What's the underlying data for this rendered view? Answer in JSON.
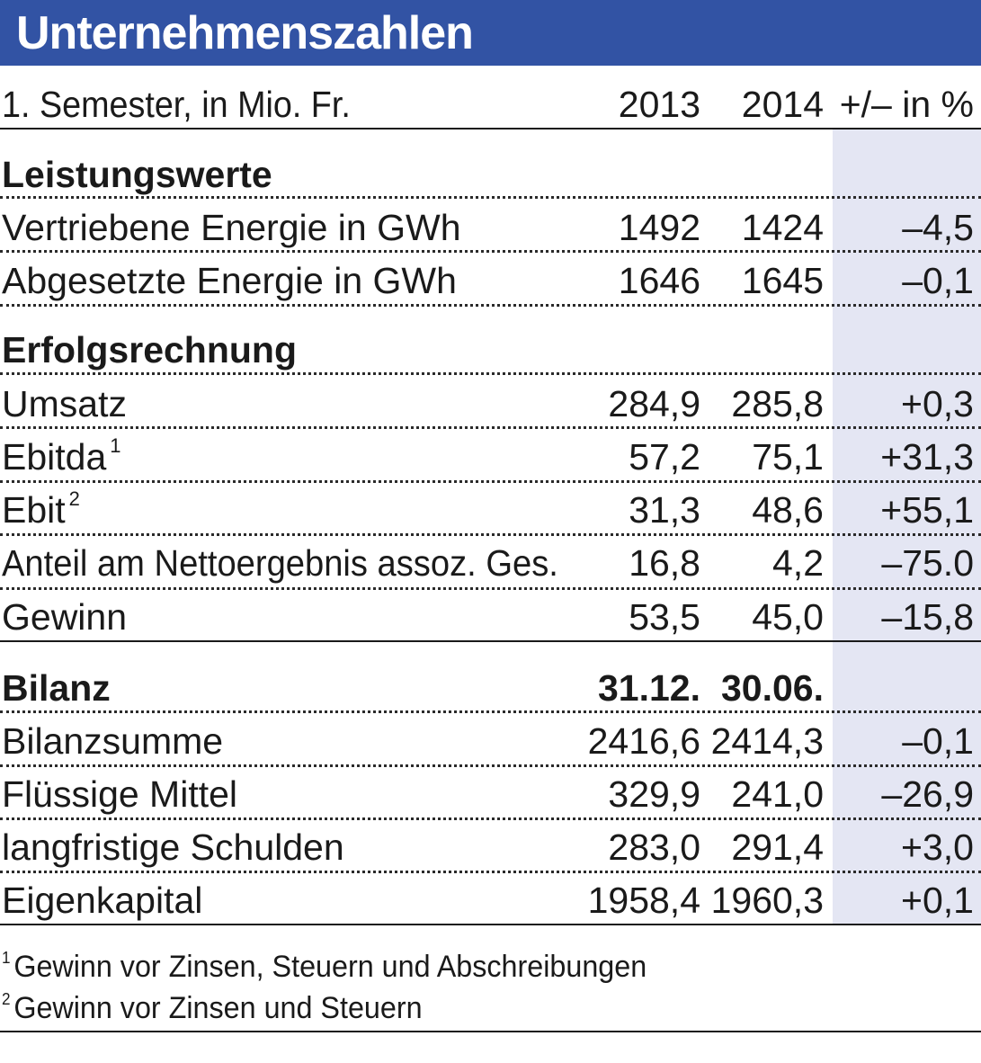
{
  "title": "Unternehmenszahlen",
  "header": {
    "label": "1. Semester, in Mio. Fr.",
    "col_2013": "2013",
    "col_2014": "2014",
    "col_pct": "+/– in %"
  },
  "sections": {
    "leistungswerte": {
      "heading": "Leistungswerte",
      "rows": [
        {
          "label": "Vertriebene Energie in GWh",
          "v2013": "1492",
          "v2014": "1424",
          "pct": "–4,5"
        },
        {
          "label": "Abgesetzte Energie in GWh",
          "v2013": "1646",
          "v2014": "1645",
          "pct": "–0,1"
        }
      ]
    },
    "erfolgsrechnung": {
      "heading": "Erfolgsrechnung",
      "rows": [
        {
          "label": "Umsatz",
          "v2013": "284,9",
          "v2014": "285,8",
          "pct": "+0,3"
        },
        {
          "label": "Ebitda",
          "footnote": "1",
          "v2013": "57,2",
          "v2014": "75,1",
          "pct": "+31,3"
        },
        {
          "label": "Ebit",
          "footnote": "2",
          "v2013": "31,3",
          "v2014": "48,6",
          "pct": "+55,1"
        },
        {
          "label": "Anteil am Nettoergebnis assoz. Ges.",
          "v2013": "16,8",
          "v2014": "4,2",
          "pct": "–75.0"
        },
        {
          "label": "Gewinn",
          "v2013": "53,5",
          "v2014": "45,0",
          "pct": "–15,8"
        }
      ]
    },
    "bilanz": {
      "heading": "Bilanz",
      "col_2013": "31.12.",
      "col_2014": "30.06.",
      "rows": [
        {
          "label": "Bilanzsumme",
          "v2013": "2416,6",
          "v2014": "2414,3",
          "pct": "–0,1"
        },
        {
          "label": "Flüssige Mittel",
          "v2013": "329,9",
          "v2014": "241,0",
          "pct": "–26,9"
        },
        {
          "label": "langfristige Schulden",
          "v2013": "283,0",
          "v2014": "291,4",
          "pct": "+3,0"
        },
        {
          "label": "Eigenkapital",
          "v2013": "1958,4",
          "v2014": "1960,3",
          "pct": "+0,1"
        }
      ]
    }
  },
  "footnotes": [
    {
      "mark": "1",
      "text": "Gewinn vor Zinsen, Steuern und Abschreibungen"
    },
    {
      "mark": "2",
      "text": "Gewinn vor Zinsen und Steuern"
    }
  ],
  "colors": {
    "title_bar": "#3253a4",
    "title_text": "#ffffff",
    "pct_band": "#e4e6f3",
    "text": "#1a1a1a"
  }
}
